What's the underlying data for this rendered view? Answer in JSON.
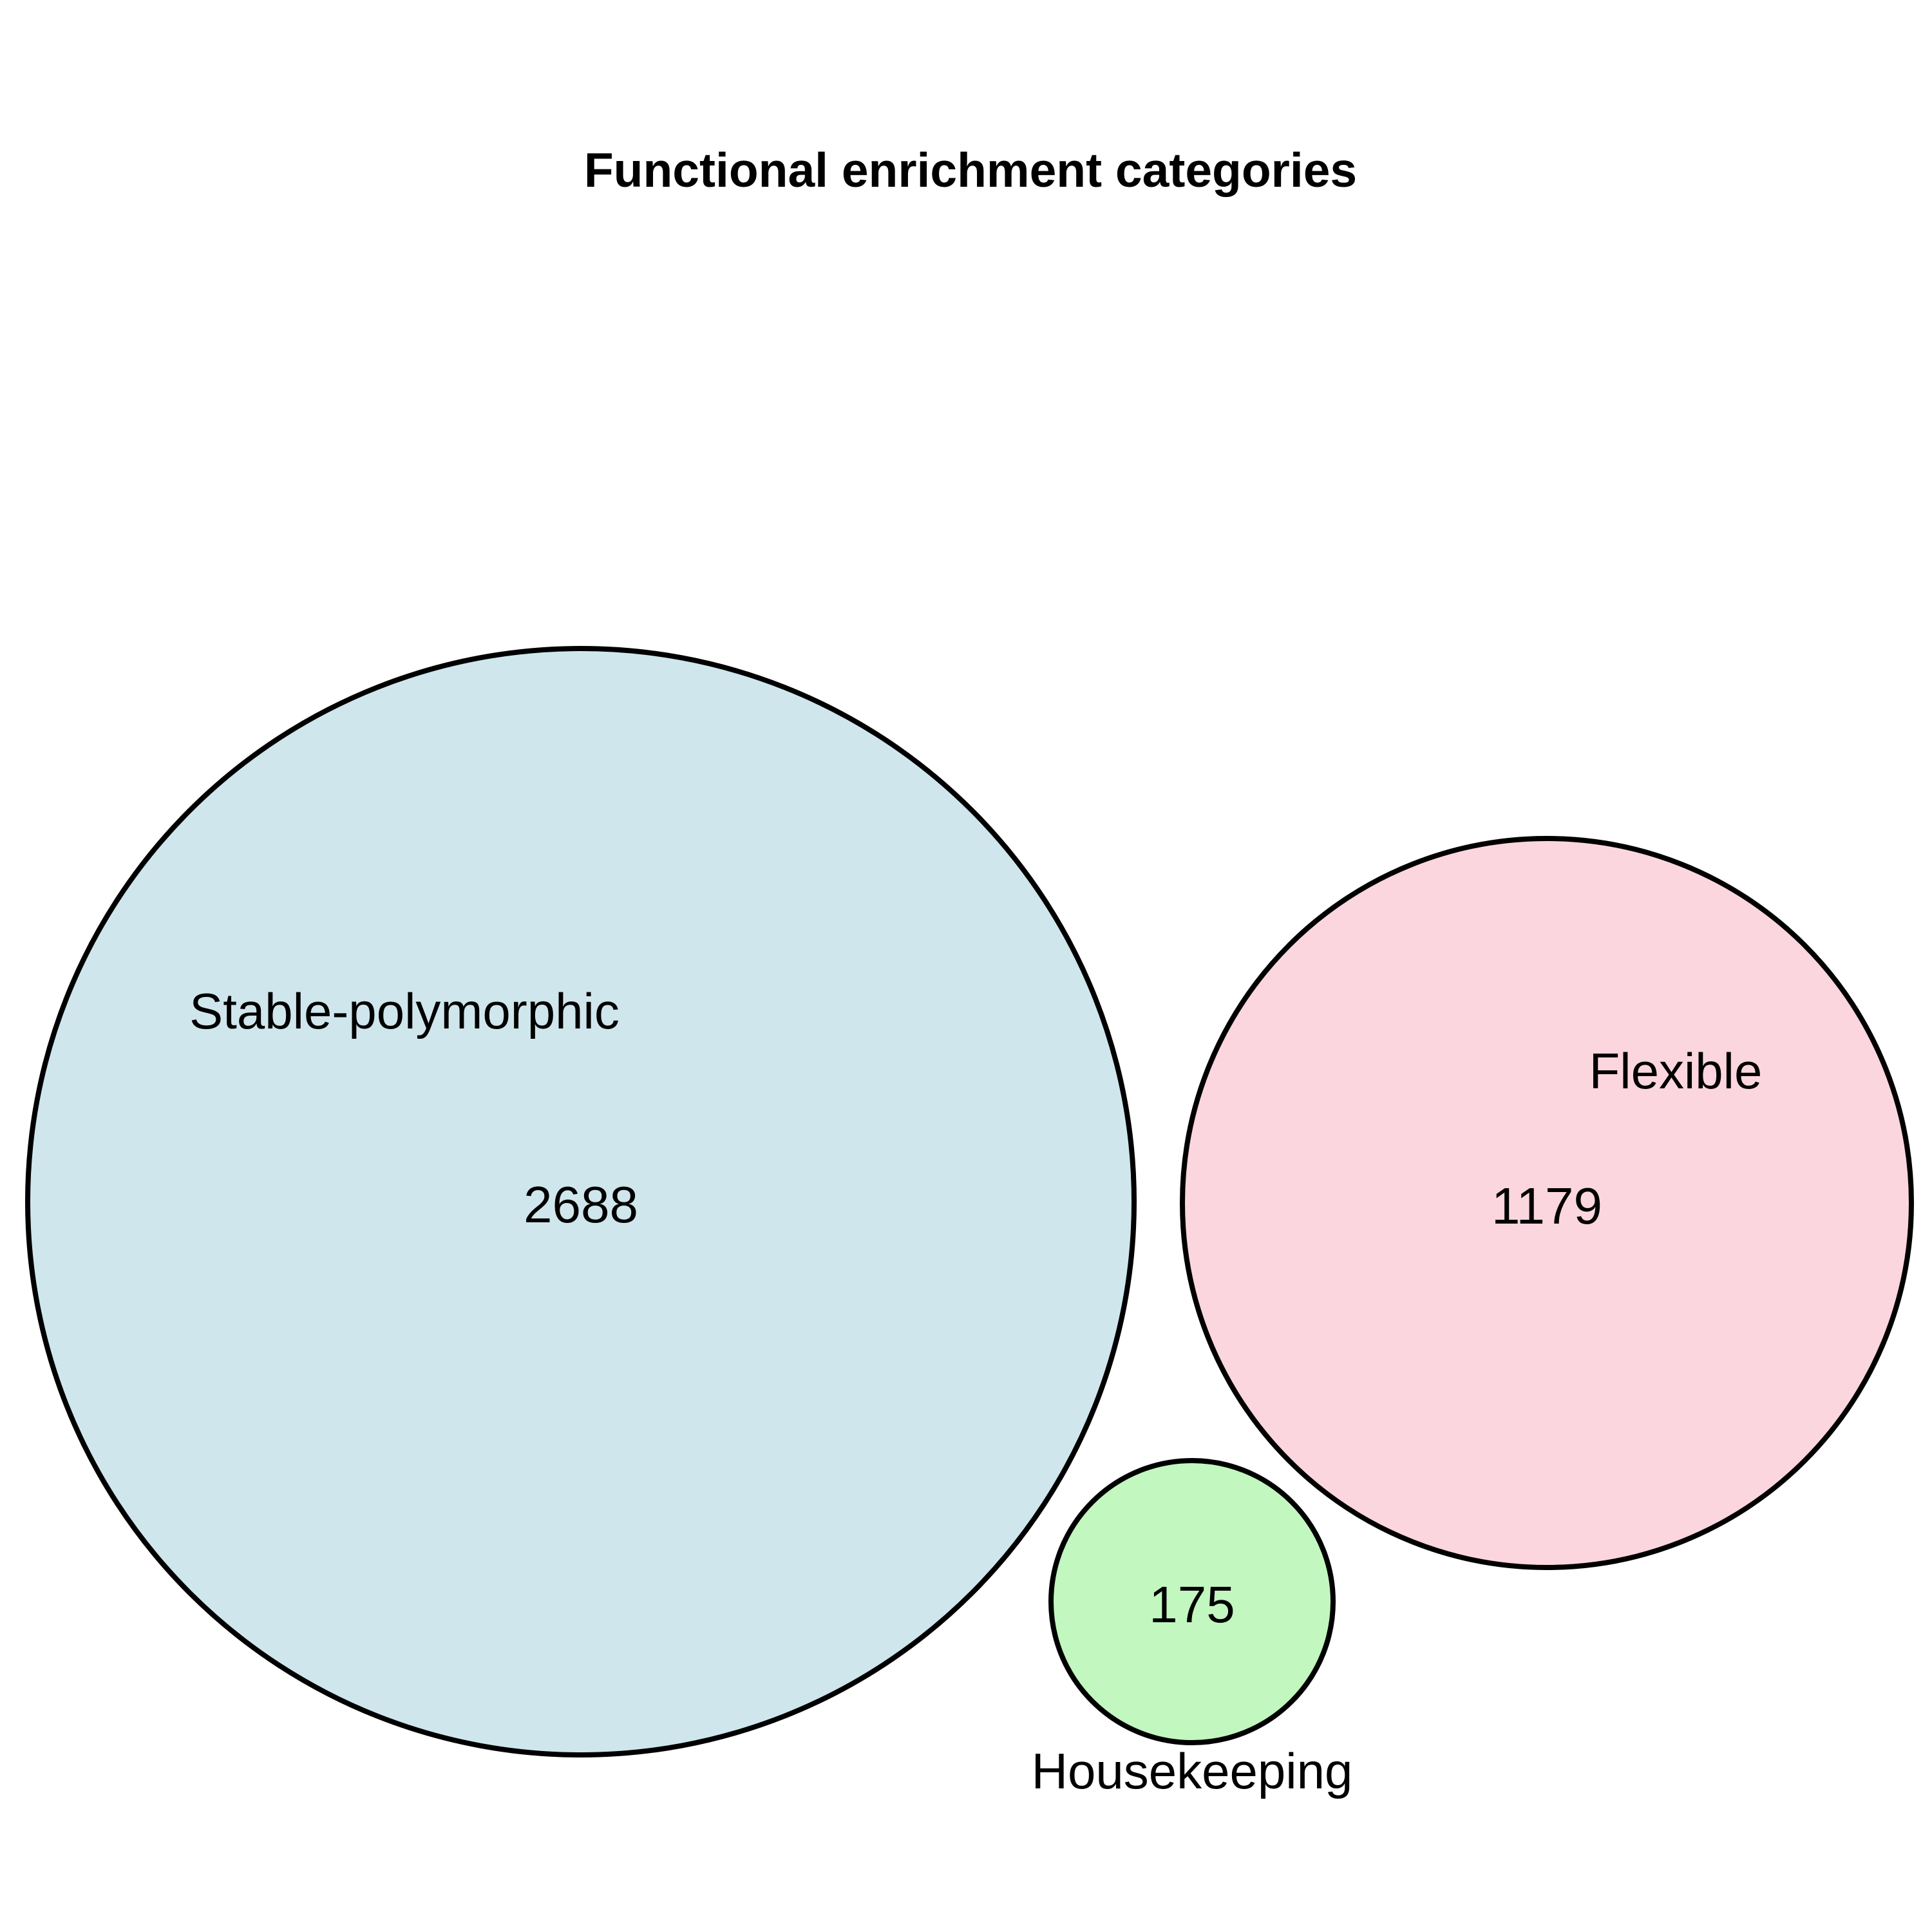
{
  "title": "Functional enrichment categories",
  "sets": [
    {
      "id": "stable",
      "name": "Stable-polymorphic",
      "count": "2688",
      "fill_color": "#cfe6ed"
    },
    {
      "id": "flexible",
      "name": "Flexible",
      "count": "1179",
      "fill_color": "#fcd6de"
    },
    {
      "id": "housekeeping",
      "name": "Housekeeping",
      "count": "175",
      "fill_color": "#c2f7c0"
    }
  ],
  "outline_color": "#000000"
}
